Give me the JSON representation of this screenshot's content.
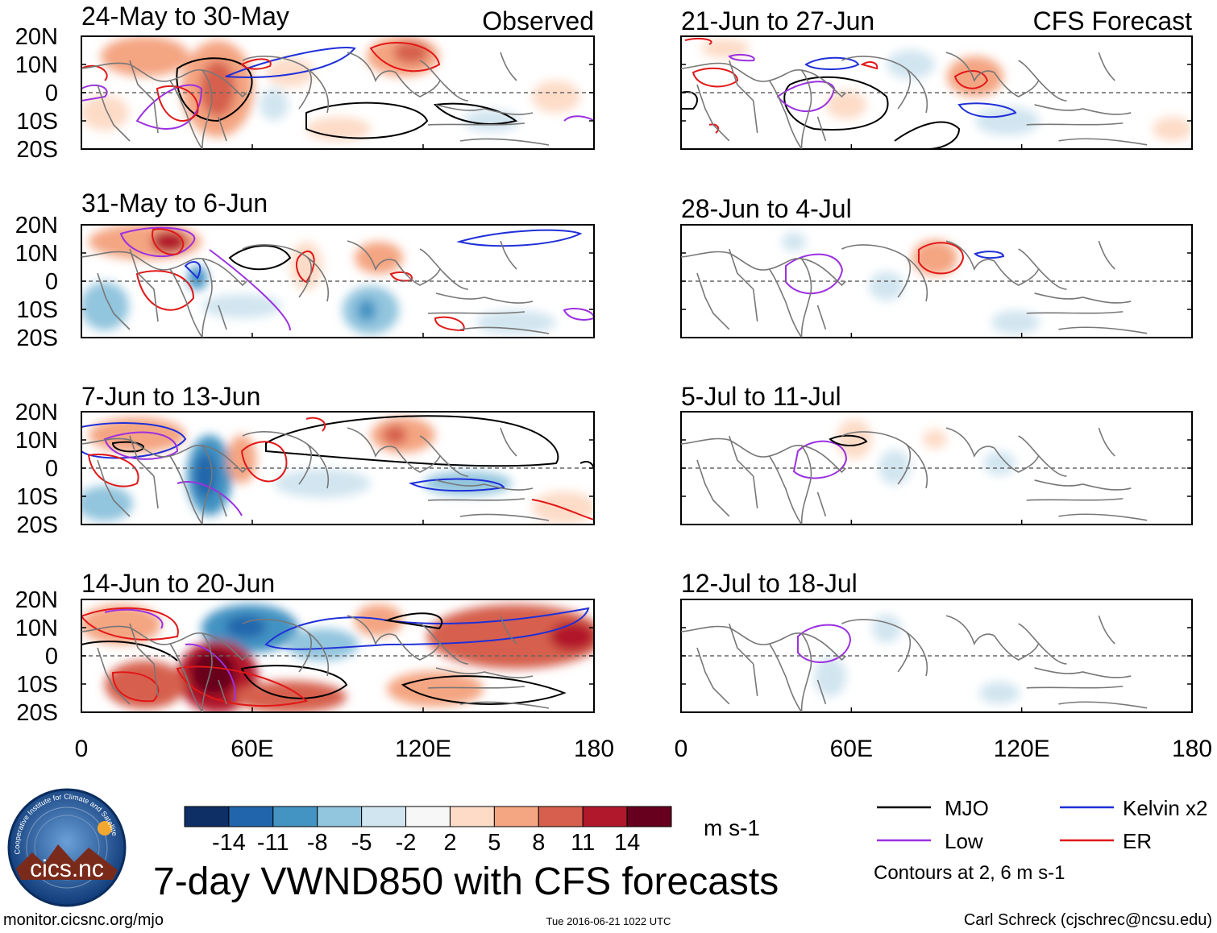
{
  "figure": {
    "main_title": "7-day VWND850 with CFS forecasts",
    "observed_label": "Observed",
    "forecast_label": "CFS Forecast",
    "url": "monitor.cicsnc.org/mjo",
    "timestamp": "Tue 2016-06-21 1022 UTC",
    "credit": "Carl Schreck (cjschrec@ncsu.edu)",
    "logo_text": "cics.nc",
    "logo_ring_text": "Cooperative Institute for Climate and Satellites"
  },
  "chart_data": {
    "type": "heatmap",
    "variable": "VWND850",
    "units": "m s-1",
    "y_ticks": [
      "20N",
      "10N",
      "0",
      "10S",
      "20S"
    ],
    "x_ticks": [
      "0",
      "60E",
      "120E",
      "180"
    ],
    "x_range": [
      0,
      180
    ],
    "y_range": [
      -20,
      20
    ],
    "colorbar": {
      "labels": [
        "-14",
        "-11",
        "-8",
        "-5",
        "-2",
        "2",
        "5",
        "8",
        "11",
        "14"
      ],
      "colors": [
        "#0d2f66",
        "#2166ac",
        "#4393c3",
        "#92c5de",
        "#d1e5f0",
        "#f7f7f7",
        "#fddbc7",
        "#f4a582",
        "#d6604d",
        "#b2182b",
        "#67001f"
      ],
      "units_label": "m s-1"
    },
    "legend": {
      "items": [
        {
          "label": "MJO",
          "color": "#000000"
        },
        {
          "label": "Kelvin x2",
          "color": "#1f2fd8"
        },
        {
          "label": "Low",
          "color": "#9b30e0"
        },
        {
          "label": "ER",
          "color": "#e01818"
        }
      ],
      "note": "Contours at 2, 6 m s-1"
    },
    "panels": [
      {
        "column": "observed",
        "period": "24-May to 30-May"
      },
      {
        "column": "observed",
        "period": "31-May to 6-Jun"
      },
      {
        "column": "observed",
        "period": "7-Jun to 13-Jun"
      },
      {
        "column": "observed",
        "period": "14-Jun to 20-Jun"
      },
      {
        "column": "forecast",
        "period": "21-Jun to 27-Jun"
      },
      {
        "column": "forecast",
        "period": "28-Jun to 4-Jul"
      },
      {
        "column": "forecast",
        "period": "5-Jul to 11-Jul"
      },
      {
        "column": "forecast",
        "period": "12-Jul to 18-Jul"
      }
    ]
  }
}
